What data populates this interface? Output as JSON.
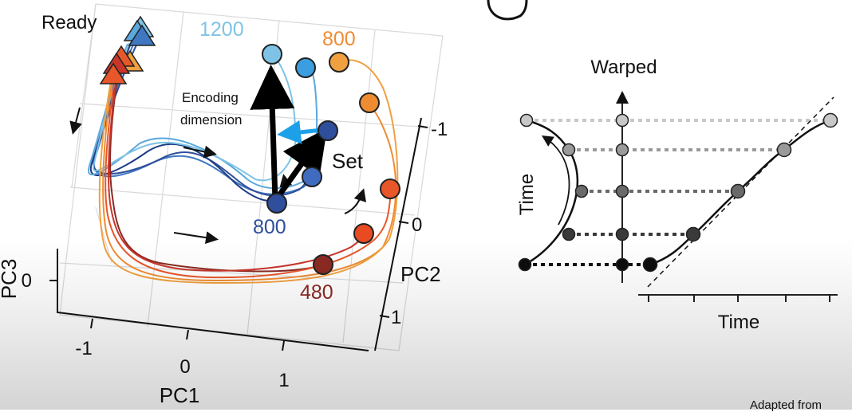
{
  "left_panel": {
    "ready_label": "Ready",
    "set_label": "Set",
    "encoding_label_line1": "Encoding",
    "encoding_label_line2": "dimension",
    "interval_labels": {
      "i1200_top": "1200",
      "i800_top": "800",
      "i800_blue": "800",
      "i480": "480"
    },
    "axes": {
      "pc1_label": "PC1",
      "pc1_ticks": [
        "-1",
        "0",
        "1"
      ],
      "pc2_label": "PC2",
      "pc2_ticks": [
        "-1",
        "0",
        "1"
      ],
      "pc3_label": "PC3",
      "pc3_ticks": [
        "0"
      ]
    },
    "colors": {
      "i1200": "#7ec3e6",
      "i1100": "#5aa8dc",
      "i1000": "#3f78c0",
      "i800": "#2f4e9c",
      "i480": "#8b2a23",
      "i600": "#c8352b",
      "i700": "#e8572a",
      "i750": "#ef8c32",
      "i800_orange": "#f0a040",
      "encoding_arrow": "#1ea0e8"
    }
  },
  "right_panel": {
    "warped_label": "Warped",
    "time_axis_label": "Time",
    "time_arc_label": "Time",
    "point_shades": [
      "#0d0d0d",
      "#3a3a3a",
      "#6a6a6a",
      "#9a9a9a",
      "#c8c8c8"
    ]
  },
  "footer": {
    "credit": "Adapted from"
  }
}
